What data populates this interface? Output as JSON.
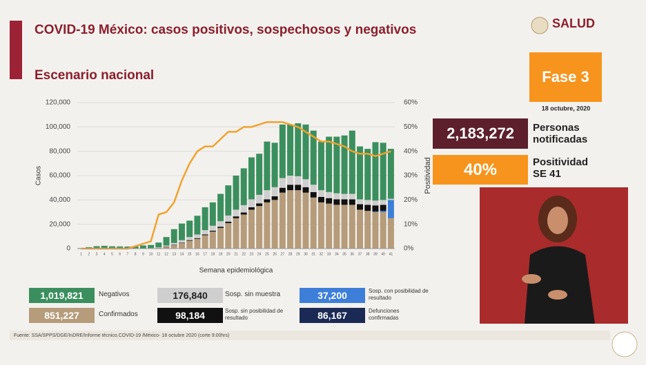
{
  "chart_data": {
    "type": "bar",
    "stacked": true,
    "title": "COVID-19 México: casos positivos, sospechosos y negativos",
    "subtitle": "Escenario nacional",
    "x_label": "Semana epidemiológica",
    "y_label": "Casos",
    "y2_label": "Positividad",
    "categories": [
      "1",
      "2",
      "3",
      "4",
      "5",
      "6",
      "7",
      "8",
      "9",
      "10",
      "11",
      "12",
      "13",
      "14",
      "15",
      "16",
      "17",
      "18",
      "19",
      "20",
      "21",
      "22",
      "23",
      "24",
      "25",
      "26",
      "27",
      "28",
      "29",
      "30",
      "31",
      "32",
      "33",
      "34",
      "35",
      "36",
      "37",
      "38",
      "39",
      "40",
      "41"
    ],
    "ylim": [
      0,
      120000
    ],
    "yticks": [
      0,
      {
        "value": 20000,
        "label": "20,000"
      },
      {
        "value": 40000,
        "label": "40,000"
      },
      {
        "value": 60000,
        "label": "60,000"
      },
      {
        "value": 80000,
        "label": "80,000"
      },
      {
        "value": 100000,
        "label": "100,000"
      },
      {
        "value": 120000,
        "label": "120,000"
      }
    ],
    "y2lim": [
      0,
      60
    ],
    "y2ticks": [
      {
        "value": 0,
        "label": "0%"
      },
      {
        "value": 10,
        "label": "10%"
      },
      {
        "value": 20,
        "label": "20%"
      },
      {
        "value": 30,
        "label": "30%"
      },
      {
        "value": 40,
        "label": "40%"
      },
      {
        "value": 50,
        "label": "50%"
      },
      {
        "value": 60,
        "label": "60%"
      }
    ],
    "series": [
      {
        "name": "Negativos",
        "color": "#3b8f5e",
        "values": [
          400,
          1200,
          2000,
          2300,
          1900,
          1800,
          1700,
          1745,
          2440,
          2600,
          3900,
          7000,
          11400,
          13700,
          13500,
          15400,
          18800,
          19200,
          22500,
          24800,
          28000,
          30300,
          34500,
          33800,
          40000,
          36500,
          44000,
          42000,
          43500,
          45000,
          44500,
          40000,
          45500,
          46500,
          48000,
          52000,
          43500,
          42000,
          48000,
          47000,
          41000
        ]
      },
      {
        "name": "Confirmados",
        "color": "#b69c7b",
        "values": [
          0,
          0,
          0,
          0,
          0,
          0,
          0,
          5,
          60,
          200,
          600,
          1500,
          2800,
          4500,
          6500,
          8000,
          11000,
          14000,
          17000,
          21000,
          25000,
          28000,
          32000,
          35000,
          38000,
          40000,
          46000,
          48000,
          48000,
          46000,
          42000,
          38000,
          37000,
          36000,
          36000,
          36000,
          32000,
          31000,
          30000,
          30000,
          25000
        ]
      },
      {
        "name": "Sosp. sin muestra",
        "color": "#cfcfcf",
        "values": [
          0,
          0,
          0,
          0,
          0,
          0,
          0,
          50,
          100,
          200,
          400,
          800,
          1500,
          2000,
          2500,
          3000,
          3500,
          4000,
          4500,
          5000,
          5500,
          6000,
          6500,
          7000,
          7500,
          7500,
          8000,
          7500,
          7000,
          6500,
          6000,
          5500,
          5000,
          5000,
          4500,
          4500,
          4000,
          4000,
          4000,
          4000,
          1000
        ]
      },
      {
        "name": "Sosp. sin posibilidad de resultado",
        "color": "#111111",
        "values": [
          0,
          0,
          0,
          0,
          0,
          0,
          0,
          0,
          0,
          0,
          100,
          200,
          300,
          400,
          500,
          600,
          700,
          800,
          1000,
          1200,
          1500,
          1700,
          2000,
          2200,
          2500,
          3000,
          4000,
          4500,
          4500,
          4500,
          4500,
          4500,
          4500,
          4500,
          4500,
          4500,
          4500,
          5000,
          5000,
          5000,
          0
        ]
      },
      {
        "name": "Sosp. con posibilidad de resultado",
        "color": "#3d7fd8",
        "values": [
          0,
          0,
          0,
          0,
          0,
          0,
          0,
          0,
          0,
          0,
          0,
          0,
          0,
          0,
          0,
          0,
          0,
          0,
          0,
          0,
          0,
          0,
          0,
          0,
          0,
          0,
          0,
          0,
          0,
          0,
          0,
          0,
          0,
          0,
          0,
          0,
          0,
          0,
          500,
          1000,
          15000
        ]
      },
      {
        "name": "Positividad",
        "type": "line",
        "axis": "y2",
        "color": "#f0a22e",
        "values": [
          0,
          0,
          0,
          0,
          0,
          0,
          0,
          1,
          2,
          3,
          14,
          15,
          19,
          28,
          35,
          40,
          42,
          42,
          45,
          48,
          48,
          50,
          50,
          51,
          52,
          52,
          52,
          51,
          50,
          48,
          46,
          44,
          44,
          43,
          42,
          40,
          39,
          39,
          38,
          39,
          40
        ]
      }
    ]
  },
  "summary": {
    "totals": [
      "1,019,821",
      "851,227",
      "176,840",
      "98,184",
      "37,200"
    ],
    "deaths": {
      "value": "86,167",
      "label": "Defunciones confirmadas",
      "color": "#1b2a55"
    },
    "notified": {
      "value": "2,183,272",
      "label": "Personas notificadas"
    },
    "positivity": {
      "value": "40%",
      "label": "Positividad SE 41"
    }
  },
  "header": {
    "logo": "SALUD",
    "phase": "Fase 3",
    "date": "18 octubre, 2020"
  },
  "footer": {
    "source": "Fuente: SSA/SPPS/DGE/InDRE/Informe técnico.COVID-19 /México- 18 octubre 2020 (corte 9:00hrs)"
  }
}
